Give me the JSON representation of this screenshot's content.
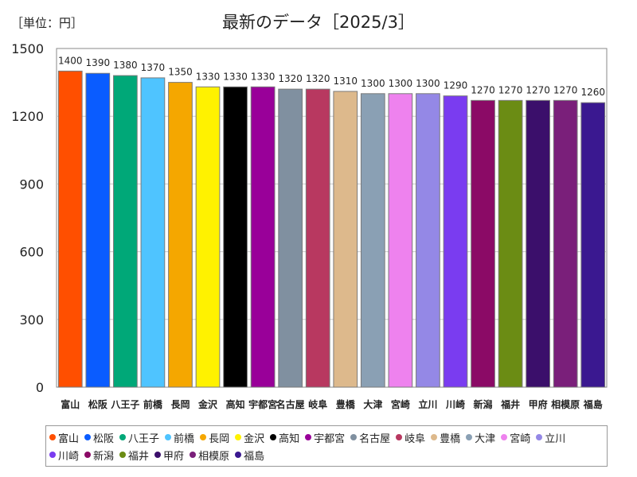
{
  "chart_data": {
    "type": "bar",
    "title": "最新のデータ［2025/3］",
    "unit_label": "［単位：円］",
    "ylim": [
      0,
      1500
    ],
    "yticks": [
      0,
      300,
      600,
      900,
      1200,
      1500
    ],
    "grid": true,
    "legend_position": "bottom",
    "categories": [
      "富山",
      "松阪",
      "八王子",
      "前橋",
      "長岡",
      "金沢",
      "高知",
      "宇都宮",
      "名古屋",
      "岐阜",
      "豊橋",
      "大津",
      "宮崎",
      "立川",
      "川崎",
      "新潟",
      "福井",
      "甲府",
      "相模原",
      "福島"
    ],
    "values": [
      1400,
      1390,
      1380,
      1370,
      1350,
      1330,
      1330,
      1330,
      1320,
      1320,
      1310,
      1300,
      1300,
      1300,
      1290,
      1270,
      1270,
      1270,
      1270,
      1260
    ],
    "colors": [
      "#ff4f00",
      "#0a5cff",
      "#00a878",
      "#4fc4ff",
      "#f5a700",
      "#fff200",
      "#000000",
      "#990099",
      "#8090a0",
      "#b83860",
      "#ddb98c",
      "#8aa0b4",
      "#ee82ee",
      "#9488e6",
      "#7a3cf0",
      "#8b0a66",
      "#6b8c14",
      "#3b0f6b",
      "#7a1f7a",
      "#3a1890"
    ]
  }
}
